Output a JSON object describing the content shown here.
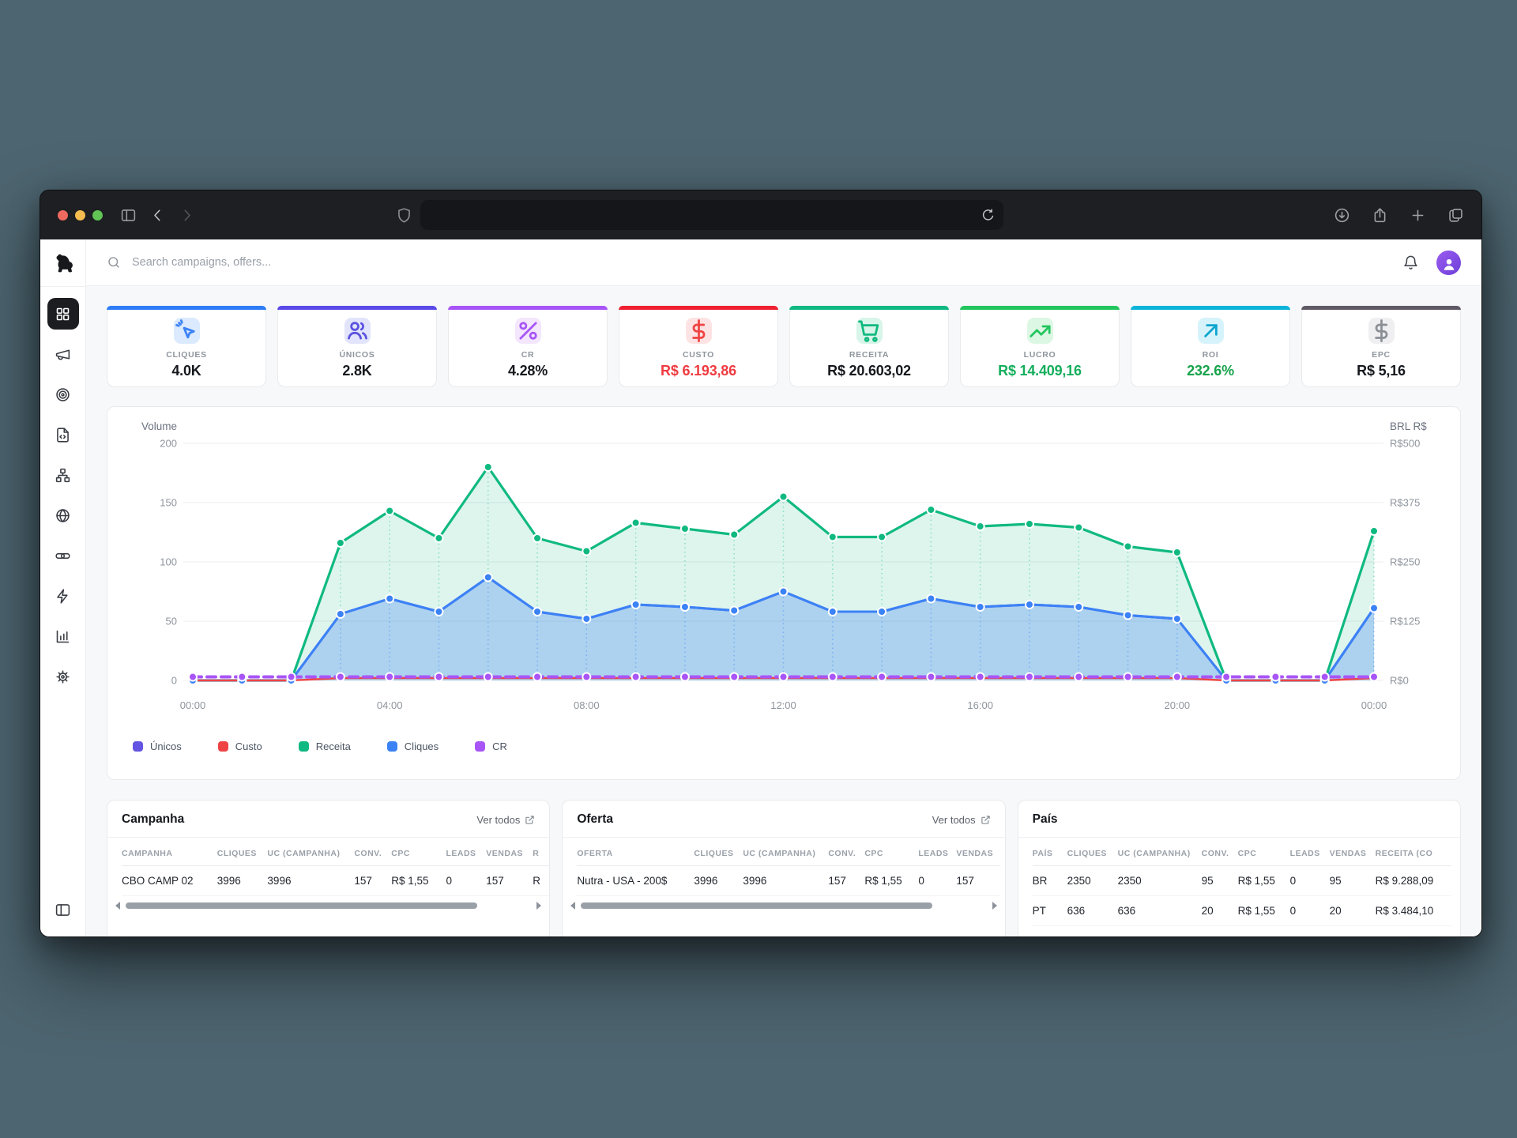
{
  "browser": {
    "traffic_lights": [
      "#ee6a5f",
      "#f5bd4f",
      "#61c454"
    ],
    "url_text": "",
    "left_icons": [
      "panel-left",
      "chevron-left",
      "chevron-right"
    ],
    "right_icons": [
      "download",
      "share",
      "plus",
      "tabs"
    ]
  },
  "sidebar": {
    "logo_icon": "dog",
    "items": [
      {
        "key": "dashboard",
        "icon": "grid",
        "active": true
      },
      {
        "key": "campaigns",
        "icon": "megaphone",
        "active": false
      },
      {
        "key": "offers",
        "icon": "target",
        "active": false
      },
      {
        "key": "landers",
        "icon": "file-code",
        "active": false
      },
      {
        "key": "flows",
        "icon": "sitemap",
        "active": false
      },
      {
        "key": "domains",
        "icon": "globe",
        "active": false
      },
      {
        "key": "links",
        "icon": "link",
        "active": false
      },
      {
        "key": "automation",
        "icon": "zap",
        "active": false
      },
      {
        "key": "reports",
        "icon": "bar-chart",
        "active": false
      },
      {
        "key": "settings",
        "icon": "gear",
        "active": false
      }
    ],
    "bottom_icon": "panel-left"
  },
  "topbar": {
    "search_placeholder": "Search campaigns, offers..."
  },
  "stats": [
    {
      "key": "cliques",
      "label": "CLIQUES",
      "value": "4.0K",
      "accent": "#2e7cf6",
      "icon": "cursor-click",
      "chip_bg": "#dbeafe",
      "icon_color": "#3b82f6",
      "value_color": "#15181d"
    },
    {
      "key": "unicos",
      "label": "ÚNICOS",
      "value": "2.8K",
      "accent": "#5a49e8",
      "icon": "users",
      "chip_bg": "#e2e4fb",
      "icon_color": "#5b52e0",
      "value_color": "#15181d"
    },
    {
      "key": "cr",
      "label": "CR",
      "value": "4.28%",
      "accent": "#a855f7",
      "icon": "percent",
      "chip_bg": "#f3e6fd",
      "icon_color": "#a855f7",
      "value_color": "#15181d"
    },
    {
      "key": "custo",
      "label": "CUSTO",
      "value": "R$ 6.193,86",
      "accent": "#ef2030",
      "icon": "dollar",
      "chip_bg": "#fde3e3",
      "icon_color": "#ef4444",
      "value_color": "#ee3b41"
    },
    {
      "key": "receita",
      "label": "RECEITA",
      "value": "R$ 20.603,02",
      "accent": "#10b981",
      "icon": "shopping-cart",
      "chip_bg": "#d7f5e8",
      "icon_color": "#10b981",
      "value_color": "#15181d"
    },
    {
      "key": "lucro",
      "label": "LUCRO",
      "value": "R$ 14.409,16",
      "accent": "#22c55e",
      "icon": "trending-up",
      "chip_bg": "#dcf7e3",
      "icon_color": "#22c55e",
      "value_color": "#14ae5c"
    },
    {
      "key": "roi",
      "label": "ROI",
      "value": "232.6%",
      "accent": "#0db4da",
      "icon": "arrow-up-right",
      "chip_bg": "#d6f3fb",
      "icon_color": "#0ea5cf",
      "value_color": "#16a34a"
    },
    {
      "key": "epc",
      "label": "EPC",
      "value": "R$ 5,16",
      "accent": "#5f5a64",
      "icon": "dollar",
      "chip_bg": "#efeff1",
      "icon_color": "#8b8f96",
      "value_color": "#15181d"
    }
  ],
  "chart_data": {
    "type": "line",
    "x": [
      "00:00",
      "01:00",
      "02:00",
      "03:00",
      "04:00",
      "05:00",
      "06:00",
      "07:00",
      "08:00",
      "09:00",
      "10:00",
      "11:00",
      "12:00",
      "13:00",
      "14:00",
      "15:00",
      "16:00",
      "17:00",
      "18:00",
      "19:00",
      "20:00",
      "21:00",
      "22:00",
      "23:00",
      "00:00"
    ],
    "x_tick_indices": [
      0,
      4,
      8,
      12,
      16,
      20,
      24
    ],
    "series": [
      {
        "name": "Únicos",
        "color": "#6355e1",
        "values": [
          0,
          0,
          0,
          56,
          69,
          58,
          87,
          58,
          52,
          64,
          62,
          59,
          75,
          58,
          58,
          69,
          62,
          64,
          62,
          55,
          52,
          0,
          0,
          0,
          61
        ],
        "dots": false,
        "area": false
      },
      {
        "name": "Custo",
        "color": "#ef4444",
        "values": [
          0,
          0,
          0,
          2,
          2,
          2,
          2,
          2,
          2,
          2,
          2,
          2,
          2,
          2,
          2,
          2,
          2,
          2,
          2,
          2,
          2,
          0,
          0,
          0,
          2
        ],
        "dots": false,
        "area": false
      },
      {
        "name": "Receita",
        "color": "#10b981",
        "values": [
          0,
          0,
          0,
          116,
          143,
          120,
          180,
          120,
          109,
          133,
          128,
          123,
          155,
          121,
          121,
          144,
          130,
          132,
          129,
          113,
          108,
          0,
          0,
          0,
          126
        ],
        "dots": true,
        "area": true,
        "area_opacity": 0.14
      },
      {
        "name": "Cliques",
        "color": "#3b82f6",
        "values": [
          0,
          0,
          0,
          56,
          69,
          58,
          87,
          58,
          52,
          64,
          62,
          59,
          75,
          58,
          58,
          69,
          62,
          64,
          62,
          55,
          52,
          0,
          0,
          0,
          61
        ],
        "dots": true,
        "area": true,
        "area_opacity": 0.3
      },
      {
        "name": "CR",
        "color": "#a855f7",
        "values": [
          3,
          3,
          3,
          3,
          3,
          3,
          3,
          3,
          3,
          3,
          3,
          3,
          3,
          3,
          3,
          3,
          3,
          3,
          3,
          3,
          3,
          3,
          3,
          3,
          3
        ],
        "dots": true,
        "area": false,
        "dashed": true
      }
    ],
    "left_axis": {
      "title": "Volume",
      "ticks": [
        0,
        50,
        100,
        150,
        200
      ],
      "max": 200
    },
    "right_axis": {
      "title": "BRL R$",
      "tick_labels": [
        "R$0",
        "R$125",
        "R$250",
        "R$375",
        "R$500"
      ]
    },
    "grid": true,
    "legend_position": "bottom-left"
  },
  "tables": [
    {
      "key": "campanha",
      "title": "Campanha",
      "link": "Ver todos",
      "columns": [
        "CAMPANHA",
        "CLIQUES",
        "UC (CAMPANHA)",
        "CONV.",
        "CPC",
        "LEADS",
        "VENDAS",
        "R"
      ],
      "widths": [
        125,
        65,
        112,
        48,
        72,
        52,
        60,
        22
      ],
      "rows": [
        [
          "CBO CAMP 02",
          "3996",
          "3996",
          "157",
          "R$ 1,55",
          "0",
          "157",
          "R"
        ]
      ],
      "scrollbar": true
    },
    {
      "key": "oferta",
      "title": "Oferta",
      "link": "Ver todos",
      "columns": [
        "OFERTA",
        "CLIQUES",
        "UC (CAMPANHA)",
        "CONV.",
        "CPC",
        "LEADS",
        "VENDAS"
      ],
      "widths": [
        148,
        62,
        108,
        46,
        68,
        48,
        56
      ],
      "rows": [
        [
          "Nutra - USA - 200$",
          "3996",
          "3996",
          "157",
          "R$ 1,55",
          "0",
          "157"
        ]
      ],
      "scrollbar": true
    },
    {
      "key": "pais",
      "title": "País",
      "link": null,
      "columns": [
        "PAÍS",
        "CLIQUES",
        "UC (CAMPANHA)",
        "CONV.",
        "CPC",
        "LEADS",
        "VENDAS",
        "RECEITA (CO"
      ],
      "widths": [
        44,
        64,
        106,
        46,
        66,
        50,
        58,
        96
      ],
      "rows": [
        [
          "BR",
          "2350",
          "2350",
          "95",
          "R$ 1,55",
          "0",
          "95",
          "R$ 9.288,09"
        ],
        [
          "PT",
          "636",
          "636",
          "20",
          "R$ 1,55",
          "0",
          "20",
          "R$ 3.484,10"
        ]
      ],
      "scrollbar": false
    }
  ]
}
